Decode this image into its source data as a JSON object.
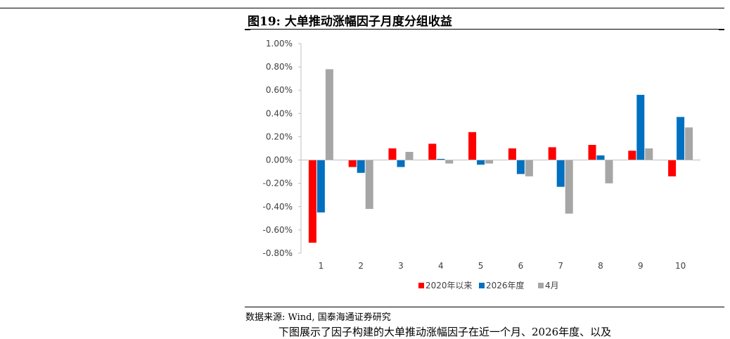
{
  "title": "图19: 大单推动涨幅因子月度分组收益",
  "source": "数据来源: Wind, 国泰海通证券研究",
  "body_text": "下图展示了因子构建的大单推动涨幅因子在近一个月、2026年度、以及",
  "chart_data": {
    "type": "bar",
    "categories": [
      "1",
      "2",
      "3",
      "4",
      "5",
      "6",
      "7",
      "8",
      "9",
      "10"
    ],
    "series": [
      {
        "name": "2020年以来",
        "color": "#FF0000",
        "values": [
          -0.71,
          -0.06,
          0.1,
          0.14,
          0.24,
          0.1,
          0.11,
          0.13,
          0.08,
          -0.14
        ]
      },
      {
        "name": "2026年度",
        "color": "#0070C0",
        "values": [
          -0.45,
          -0.11,
          -0.06,
          0.01,
          -0.04,
          -0.12,
          -0.23,
          0.04,
          0.56,
          0.37
        ]
      },
      {
        "name": "4月",
        "color": "#A6A6A6",
        "values": [
          0.78,
          -0.42,
          0.07,
          -0.03,
          -0.03,
          -0.14,
          -0.46,
          -0.2,
          0.1,
          0.28
        ]
      }
    ],
    "yticks": [
      "1.00%",
      "0.80%",
      "0.60%",
      "0.40%",
      "0.20%",
      "0.00%",
      "-0.20%",
      "-0.40%",
      "-0.60%",
      "-0.80%"
    ],
    "ylim": [
      -0.8,
      1.0
    ],
    "unit": "%",
    "legend_position": "bottom",
    "grid": false
  }
}
